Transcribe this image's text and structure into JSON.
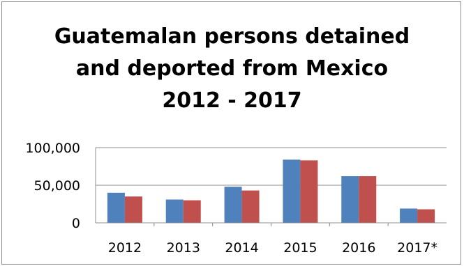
{
  "chart_data": {
    "type": "bar",
    "title": "Guatemalan persons detained\nand deported from Mexico\n2012 - 2017",
    "xlabel": "",
    "ylabel": "",
    "categories": [
      "2012",
      "2013",
      "2014",
      "2015",
      "2016",
      "2017*"
    ],
    "series": [
      {
        "values": [
          40000,
          31000,
          48000,
          84000,
          62000,
          19000
        ]
      },
      {
        "values": [
          35000,
          30000,
          43000,
          83000,
          62000,
          18000
        ]
      }
    ],
    "ylim": [
      0,
      100000
    ],
    "yticks": [
      0,
      50000,
      100000
    ],
    "ytick_labels": [
      "0",
      "50,000",
      "100,000"
    ],
    "grid": true,
    "legend": "none",
    "colors": [
      "#4f81bd",
      "#c0504d"
    ]
  }
}
